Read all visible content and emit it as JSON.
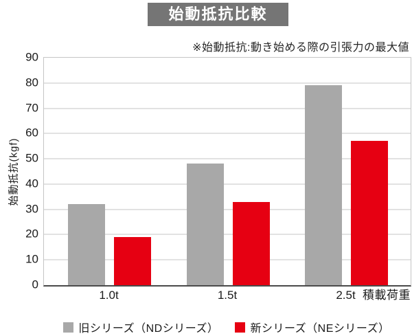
{
  "header": {
    "title": "始動抵抗比較",
    "note": "※始動抵抗:動き始める際の引張力の最大値"
  },
  "chart_data": {
    "type": "bar",
    "title": "始動抵抗比較",
    "categories": [
      "1.0t",
      "1.5t",
      "2.5t"
    ],
    "series": [
      {
        "name": "旧シリーズ（NDシリーズ）",
        "color": "#a8a8a8",
        "values": [
          32,
          48,
          79
        ]
      },
      {
        "name": "新シリーズ（NEシリーズ）",
        "color": "#e60012",
        "values": [
          19,
          33,
          57
        ]
      }
    ],
    "xlabel": "積載荷重",
    "ylabel": "始動抵抗(kgf)",
    "ylim": [
      0,
      90
    ],
    "yticks": [
      0,
      10,
      20,
      30,
      40,
      50,
      60,
      70,
      80,
      90
    ],
    "grid": true,
    "legend_position": "bottom"
  },
  "colors": {
    "title_box_bg": "#757575",
    "title_text": "#ffffff",
    "old_series": "#a8a8a8",
    "new_series": "#e60012",
    "gridline": "#c5c5c5",
    "axis_line": "#4a4a4a",
    "text": "#1a1a1a"
  }
}
